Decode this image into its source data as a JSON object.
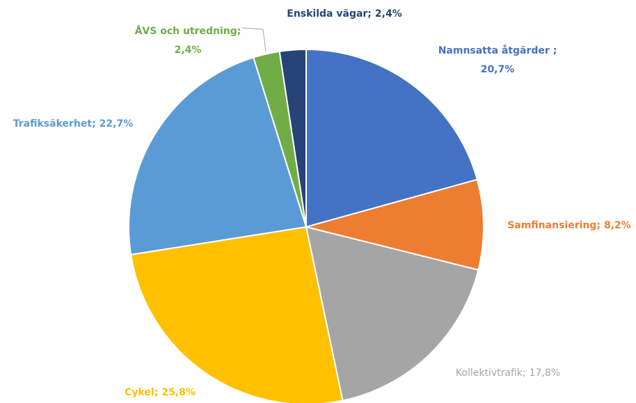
{
  "chart_data": {
    "type": "pie",
    "categories": [
      "Namnsatta åtgärder ;",
      "Samfinansiering;",
      "Kollektivtrafik;",
      "Cykel;",
      "Trafiksäkerhet;",
      "ÅVS och utredning;",
      "Enskilda vägar;"
    ],
    "values": [
      20.7,
      8.2,
      17.8,
      25.8,
      22.7,
      2.4,
      2.4
    ],
    "value_labels": [
      "20,7%",
      "8,2%",
      "17,8%",
      "25,8%",
      "22,7%",
      "2,4%",
      "2,4%"
    ],
    "colors": [
      "#4472c4",
      "#ed7d31",
      "#a5a5a5",
      "#ffc000",
      "#5b9bd5",
      "#70ad47",
      "#264478"
    ]
  }
}
